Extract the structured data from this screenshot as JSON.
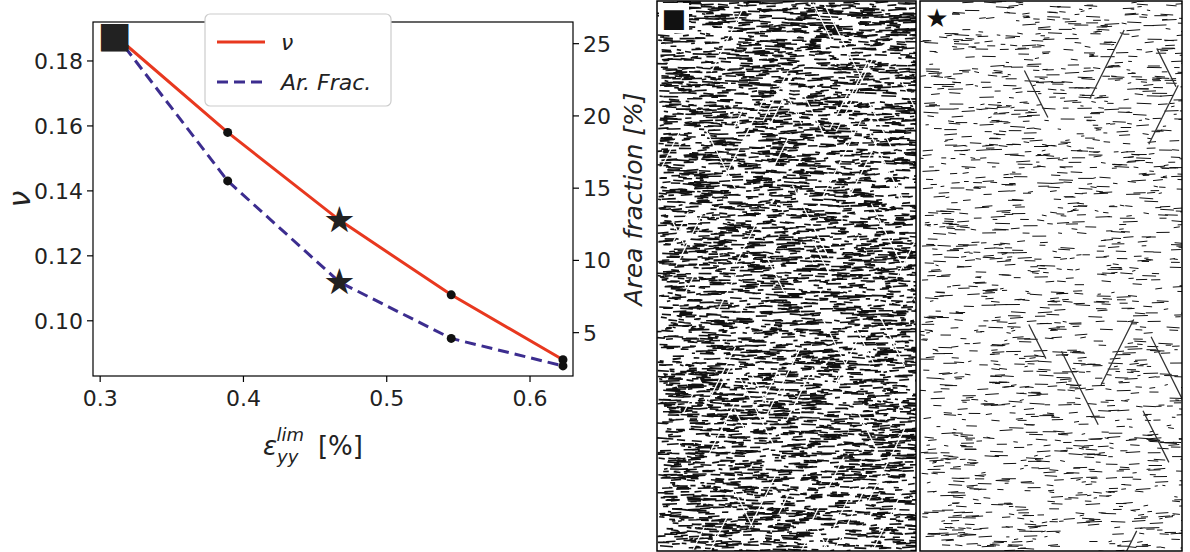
{
  "chart_data": {
    "type": "line",
    "xlabel": {
      "symbol": "ε",
      "subscript": "yy",
      "superscript": "lim",
      "unit": "[%]"
    },
    "ylabel": "ν",
    "y2label": "Area fraction  [%]",
    "x": [
      0.31,
      0.389,
      0.467,
      0.545,
      0.623
    ],
    "series": [
      {
        "name": "ν",
        "color": "#e8381f",
        "line_style": "solid",
        "marker": "circle",
        "values": [
          0.188,
          0.158,
          0.131,
          0.108,
          0.088
        ]
      },
      {
        "name": "Ar. Frac.",
        "color": "#3c2d8f",
        "line_style": "dashed",
        "marker": "circle",
        "axis": "y2",
        "values": [
          25.7,
          15.5,
          8.5,
          4.6,
          2.7
        ]
      }
    ],
    "xlim": [
      0.295,
      0.63
    ],
    "xticks": [
      0.3,
      0.4,
      0.5,
      0.6
    ],
    "ylim": [
      0.083,
      0.192
    ],
    "yticks": [
      {
        "value": 0.1,
        "label": "0.10"
      },
      {
        "value": 0.12,
        "label": "0.12"
      },
      {
        "value": 0.14,
        "label": "0.14"
      },
      {
        "value": 0.16,
        "label": "0.16"
      },
      {
        "value": 0.18,
        "label": "0.18"
      }
    ],
    "y2lim": [
      2.0,
      26.5
    ],
    "y2ticks": [
      5,
      10,
      15,
      20,
      25
    ],
    "legend": "upper center",
    "grid": false,
    "annotations": [
      {
        "text": "■",
        "x": 0.31,
        "y": 0.188
      },
      {
        "text": "★",
        "x": 0.467,
        "y": 0.131
      },
      {
        "text": "★",
        "x": 0.467,
        "y": 8.5,
        "axis": "y2"
      }
    ]
  },
  "images": [
    {
      "label": "■"
    },
    {
      "label": "★"
    }
  ]
}
